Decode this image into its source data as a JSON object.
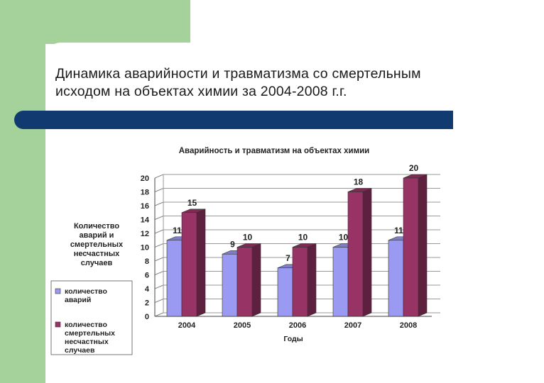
{
  "slide": {
    "title_line1": "Динамика аварийности и травматизма со смертельным",
    "title_line2": "исходом на объектах химии за 2004-2008 г.г."
  },
  "colors": {
    "green_accent": "#a5d29a",
    "stripe": "#103a70",
    "series_accidents": "#9a9af2",
    "series_fatal": "#983366"
  },
  "chart_data": {
    "type": "bar",
    "title": "Аварийность и травматизм на объектах химии",
    "xlabel": "Годы",
    "ylabel": "Количество аварий и смертельных несчастных случаев",
    "categories": [
      "2004",
      "2005",
      "2006",
      "2007",
      "2008"
    ],
    "series": [
      {
        "name": "количество аварий",
        "values": [
          11,
          9,
          7,
          10,
          11
        ]
      },
      {
        "name": "количество смертельных несчастных случаев",
        "values": [
          15,
          10,
          10,
          18,
          20
        ]
      }
    ],
    "ylim": [
      0,
      20
    ],
    "yticks": [
      0,
      2,
      4,
      6,
      8,
      10,
      12,
      14,
      16,
      18,
      20
    ],
    "grid": true,
    "legend_position": "left"
  }
}
